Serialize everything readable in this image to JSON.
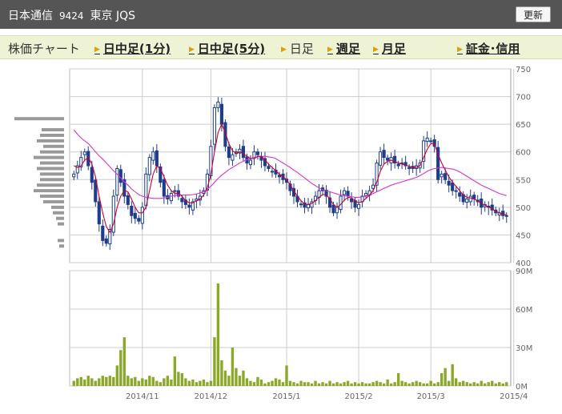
{
  "header": {
    "company": "日本通信",
    "code": "9424",
    "market": "東京 JQS",
    "refresh_label": "更新"
  },
  "nav": {
    "items": [
      {
        "label": "株価チャート",
        "link": false
      },
      {
        "label": "日中足(1分)",
        "link": true
      },
      {
        "label": "日中足(5分)",
        "link": true
      },
      {
        "label": "日足",
        "link": false
      },
      {
        "label": "週足",
        "link": true
      },
      {
        "label": "月足",
        "link": true
      },
      {
        "label": "証金･信用",
        "link": true
      }
    ]
  },
  "colors": {
    "candle": "#1f3d8c",
    "ma_short": "#cc0033",
    "ma_long": "#d733d7",
    "volume": "#8aa82a",
    "profile": "#999999",
    "grid": "#cccccc"
  },
  "chart_data": [
    {
      "type": "candlestick",
      "name": "price",
      "ylim": [
        400,
        750
      ],
      "yticks": [
        400,
        450,
        500,
        550,
        600,
        650,
        700,
        750
      ],
      "xticks": [
        {
          "label": "2014/11",
          "index": 19
        },
        {
          "label": "2014/12",
          "index": 38
        },
        {
          "label": "2015/1",
          "index": 59
        },
        {
          "label": "2015/2",
          "index": 79
        },
        {
          "label": "2015/3",
          "index": 99
        },
        {
          "label": "2015/4",
          "index": 122
        }
      ],
      "closes": [
        560,
        575,
        590,
        600,
        575,
        545,
        510,
        470,
        440,
        435,
        460,
        520,
        570,
        545,
        520,
        505,
        485,
        480,
        475,
        500,
        560,
        590,
        600,
        575,
        545,
        520,
        515,
        525,
        530,
        520,
        510,
        505,
        500,
        510,
        515,
        520,
        530,
        560,
        610,
        680,
        690,
        650,
        610,
        590,
        595,
        600,
        605,
        590,
        580,
        585,
        600,
        595,
        585,
        575,
        570,
        565,
        560,
        555,
        550,
        545,
        530,
        520,
        510,
        505,
        500,
        505,
        510,
        520,
        530,
        530,
        520,
        500,
        490,
        500,
        520,
        530,
        520,
        510,
        500,
        505,
        520,
        525,
        530,
        540,
        580,
        600,
        590,
        585,
        590,
        580,
        575,
        580,
        575,
        570,
        570,
        575,
        580,
        620,
        625,
        620,
        610,
        550,
        560,
        550,
        540,
        530,
        530,
        520,
        510,
        515,
        520,
        515,
        510,
        500,
        505,
        500,
        495,
        490,
        490,
        485,
        485
      ],
      "ma_short": [
        575,
        572,
        575,
        585,
        590,
        578,
        555,
        520,
        490,
        465,
        455,
        470,
        500,
        520,
        530,
        528,
        515,
        500,
        490,
        490,
        500,
        530,
        560,
        575,
        570,
        555,
        540,
        530,
        525,
        525,
        520,
        512,
        508,
        508,
        512,
        515,
        522,
        535,
        560,
        600,
        635,
        650,
        635,
        615,
        602,
        598,
        600,
        597,
        592,
        588,
        588,
        592,
        592,
        586,
        578,
        572,
        566,
        560,
        555,
        550,
        540,
        530,
        520,
        512,
        506,
        505,
        507,
        512,
        518,
        523,
        523,
        515,
        505,
        500,
        505,
        513,
        518,
        517,
        512,
        508,
        510,
        516,
        522,
        530,
        545,
        565,
        578,
        583,
        585,
        583,
        580,
        578,
        576,
        574,
        572,
        572,
        575,
        590,
        605,
        615,
        615,
        595,
        580,
        567,
        555,
        545,
        538,
        530,
        522,
        518,
        517,
        515,
        512,
        507,
        504,
        501,
        497,
        493,
        490,
        488,
        486
      ],
      "ma_long": [
        640,
        632,
        625,
        620,
        615,
        608,
        600,
        593,
        587,
        580,
        573,
        566,
        560,
        553,
        546,
        540,
        533,
        528,
        523,
        520,
        518,
        517,
        516,
        516,
        516,
        517,
        518,
        520,
        521,
        522,
        522,
        522,
        522,
        523,
        524,
        526,
        528,
        532,
        538,
        545,
        552,
        558,
        563,
        568,
        572,
        576,
        580,
        583,
        586,
        588,
        590,
        591,
        592,
        592,
        591,
        590,
        588,
        584,
        580,
        576,
        572,
        567,
        563,
        558,
        553,
        548,
        543,
        539,
        535,
        532,
        530,
        528,
        526,
        524,
        522,
        521,
        520,
        519,
        518,
        518,
        519,
        520,
        522,
        525,
        528,
        531,
        534,
        537,
        540,
        542,
        544,
        546,
        548,
        550,
        552,
        554,
        557,
        561,
        565,
        568,
        570,
        571,
        572,
        571,
        570,
        569,
        567,
        564,
        560,
        556,
        552,
        548,
        544,
        540,
        537,
        534,
        531,
        528,
        525,
        523,
        521
      ],
      "volume_profile": [
        {
          "price": 660,
          "size": 62
        },
        {
          "price": 640,
          "size": 28
        },
        {
          "price": 630,
          "size": 30
        },
        {
          "price": 620,
          "size": 34
        },
        {
          "price": 610,
          "size": 26
        },
        {
          "price": 600,
          "size": 30
        },
        {
          "price": 590,
          "size": 38
        },
        {
          "price": 580,
          "size": 30
        },
        {
          "price": 570,
          "size": 34
        },
        {
          "price": 560,
          "size": 30
        },
        {
          "price": 550,
          "size": 30
        },
        {
          "price": 540,
          "size": 34
        },
        {
          "price": 530,
          "size": 38
        },
        {
          "price": 520,
          "size": 30
        },
        {
          "price": 510,
          "size": 26
        },
        {
          "price": 500,
          "size": 16
        },
        {
          "price": 490,
          "size": 14
        },
        {
          "price": 480,
          "size": 10
        },
        {
          "price": 470,
          "size": 8
        },
        {
          "price": 440,
          "size": 8
        },
        {
          "price": 430,
          "size": 6
        }
      ]
    },
    {
      "type": "bar",
      "name": "volume",
      "ylim": [
        0,
        90
      ],
      "yticks": [
        {
          "value": 0,
          "label": "0M"
        },
        {
          "value": 30,
          "label": "30M"
        },
        {
          "value": 60,
          "label": "60M"
        },
        {
          "value": 90,
          "label": "90M"
        }
      ],
      "values": [
        4,
        6,
        7,
        5,
        8,
        6,
        4,
        6,
        8,
        7,
        8,
        7,
        16,
        28,
        38,
        8,
        6,
        7,
        4,
        6,
        5,
        8,
        7,
        4,
        3,
        6,
        8,
        5,
        23,
        11,
        10,
        6,
        4,
        5,
        3,
        4,
        5,
        3,
        4,
        38,
        80,
        20,
        12,
        8,
        30,
        14,
        8,
        12,
        6,
        4,
        3,
        7,
        5,
        2,
        3,
        4,
        6,
        5,
        3,
        16,
        4,
        3,
        2,
        4,
        3,
        3,
        2,
        4,
        2,
        3,
        2,
        4,
        2,
        3,
        2,
        3,
        4,
        2,
        3,
        2,
        3,
        2,
        2,
        3,
        4,
        3,
        2,
        5,
        2,
        3,
        10,
        4,
        3,
        2,
        3,
        4,
        3,
        2,
        2,
        4,
        2,
        3,
        10,
        14,
        4,
        17,
        6,
        3,
        4,
        3,
        2,
        3,
        2,
        4,
        2,
        3,
        4,
        2,
        3,
        2,
        3
      ],
      "volume_unit": "M"
    }
  ]
}
